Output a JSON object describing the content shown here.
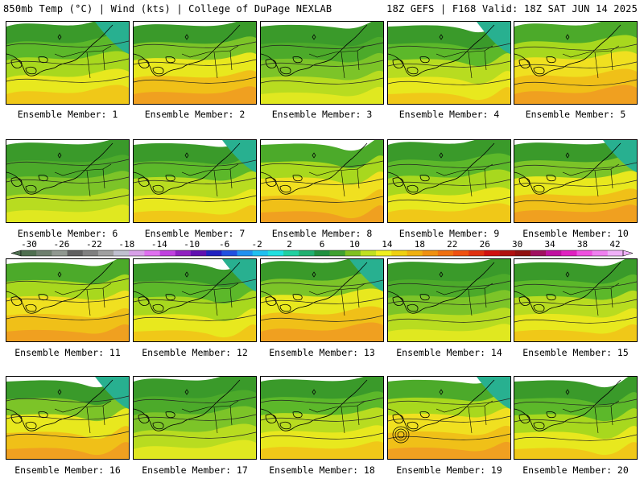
{
  "header": {
    "left": "850mb Temp (°C) | Wind (kts) | College of DuPage NEXLAB",
    "right": "18Z GEFS | F168 Valid: 18Z SAT JUN 14 2025"
  },
  "members": [
    {
      "label": "Ensemble Member: 1"
    },
    {
      "label": "Ensemble Member: 2"
    },
    {
      "label": "Ensemble Member: 3"
    },
    {
      "label": "Ensemble Member: 4"
    },
    {
      "label": "Ensemble Member: 5"
    },
    {
      "label": "Ensemble Member: 6"
    },
    {
      "label": "Ensemble Member: 7"
    },
    {
      "label": "Ensemble Member: 8"
    },
    {
      "label": "Ensemble Member: 9"
    },
    {
      "label": "Ensemble Member: 10"
    },
    {
      "label": "Ensemble Member: 11"
    },
    {
      "label": "Ensemble Member: 12"
    },
    {
      "label": "Ensemble Member: 13"
    },
    {
      "label": "Ensemble Member: 14"
    },
    {
      "label": "Ensemble Member: 15"
    },
    {
      "label": "Ensemble Member: 16"
    },
    {
      "label": "Ensemble Member: 17"
    },
    {
      "label": "Ensemble Member: 18"
    },
    {
      "label": "Ensemble Member: 19"
    },
    {
      "label": "Ensemble Member: 20"
    }
  ],
  "colorbar": {
    "ticks": [
      "-30",
      "-26",
      "-22",
      "-18",
      "-14",
      "-10",
      "-6",
      "-2",
      "2",
      "6",
      "10",
      "14",
      "18",
      "22",
      "26",
      "30",
      "34",
      "38",
      "42"
    ],
    "colors": [
      "#4f6f50",
      "#6e7f6e",
      "#909890",
      "#606060",
      "#808080",
      "#a0a0a0",
      "#c0c0d0",
      "#d8a0e8",
      "#e070f0",
      "#c040e0",
      "#9020c0",
      "#6010b0",
      "#2020c0",
      "#2050e0",
      "#2090f0",
      "#20c0f0",
      "#20e0e0",
      "#20d0a0",
      "#20b070",
      "#209040",
      "#40a030",
      "#80c020",
      "#c0e020",
      "#f0f020",
      "#f0d010",
      "#f0b010",
      "#f09010",
      "#f07010",
      "#f05010",
      "#e03010",
      "#d01010",
      "#b01010",
      "#901010",
      "#a01060",
      "#c010a0",
      "#e020c0",
      "#f050e0",
      "#f080f0",
      "#f0b0f8"
    ]
  }
}
